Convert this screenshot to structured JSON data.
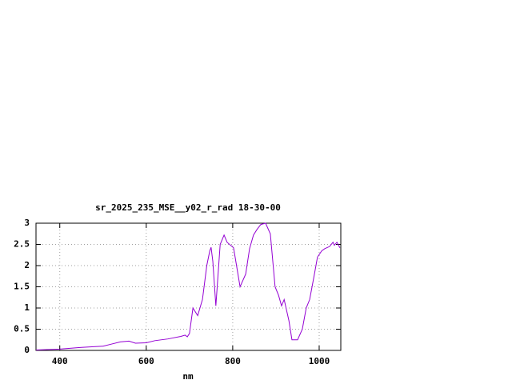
{
  "chart_data": {
    "type": "line",
    "title": "sr_2025_235_MSE__y02_r_rad 18-30-00",
    "x_label": "nm",
    "x": [
      345,
      400,
      450,
      500,
      520,
      540,
      560,
      575,
      600,
      620,
      650,
      680,
      690,
      695,
      700,
      708,
      719,
      730,
      740,
      747,
      750,
      754,
      761,
      771,
      780,
      787,
      802,
      817,
      830,
      839,
      848,
      856,
      865,
      876,
      887,
      898,
      906,
      913,
      919,
      930,
      937,
      950,
      961,
      970,
      978,
      989,
      996,
      1006,
      1013,
      1024,
      1032,
      1035,
      1041,
      1048
    ],
    "series": [
      {
        "color": "#9400d3",
        "values": [
          0.01,
          0.03,
          0.07,
          0.1,
          0.15,
          0.2,
          0.22,
          0.17,
          0.18,
          0.23,
          0.27,
          0.33,
          0.36,
          0.32,
          0.4,
          1.0,
          0.82,
          1.2,
          2.0,
          2.35,
          2.43,
          2.1,
          1.05,
          2.5,
          2.72,
          2.55,
          2.42,
          1.5,
          1.8,
          2.4,
          2.72,
          2.85,
          2.97,
          3.0,
          2.75,
          1.5,
          1.3,
          1.05,
          1.2,
          0.7,
          0.25,
          0.25,
          0.5,
          1.0,
          1.2,
          1.8,
          2.2,
          2.35,
          2.4,
          2.45,
          2.55,
          2.48,
          2.55,
          2.42
        ]
      }
    ],
    "xlim": [
      345,
      1050
    ],
    "ylim": [
      0,
      3
    ],
    "xticks": [
      400,
      600,
      800,
      1000
    ],
    "yticks": [
      0,
      0.5,
      1,
      1.5,
      2,
      2.5,
      3
    ],
    "grid": true
  }
}
